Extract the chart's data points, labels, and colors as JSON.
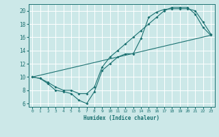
{
  "xlabel": "Humidex (Indice chaleur)",
  "bg_color": "#cce8e8",
  "line_color": "#1a7070",
  "grid_color": "#ffffff",
  "xlim": [
    -0.5,
    23.5
  ],
  "ylim": [
    5.5,
    21.0
  ],
  "xticks": [
    0,
    1,
    2,
    3,
    4,
    5,
    6,
    7,
    8,
    9,
    10,
    11,
    12,
    13,
    14,
    15,
    16,
    17,
    18,
    19,
    20,
    21,
    22,
    23
  ],
  "yticks": [
    6,
    8,
    10,
    12,
    14,
    16,
    18,
    20
  ],
  "line1_x": [
    0,
    1,
    2,
    3,
    4,
    5,
    6,
    7,
    8,
    9,
    10,
    11,
    12,
    13,
    14,
    15,
    16,
    17,
    18,
    19,
    20,
    21,
    22,
    23
  ],
  "line1_y": [
    10,
    9.8,
    9.0,
    8.0,
    7.8,
    7.5,
    6.5,
    6.0,
    7.8,
    11.0,
    12.0,
    13.0,
    13.5,
    13.5,
    15.8,
    19.0,
    19.8,
    20.2,
    20.3,
    20.3,
    20.3,
    20.0,
    18.3,
    16.5
  ],
  "line2_x": [
    0,
    1,
    2,
    3,
    4,
    5,
    6,
    7,
    8,
    9,
    10,
    11,
    12,
    13,
    14,
    15,
    16,
    17,
    18,
    19,
    20,
    21,
    22,
    23
  ],
  "line2_y": [
    10,
    9.8,
    9.2,
    8.5,
    8.0,
    8.0,
    7.5,
    7.5,
    8.5,
    11.5,
    13.0,
    14.0,
    15.0,
    16.0,
    17.0,
    18.0,
    19.0,
    20.0,
    20.5,
    20.5,
    20.5,
    19.5,
    17.5,
    16.3
  ],
  "line3_x": [
    0,
    23
  ],
  "line3_y": [
    10,
    16.3
  ],
  "marker_size": 2.0,
  "line_width": 0.8
}
